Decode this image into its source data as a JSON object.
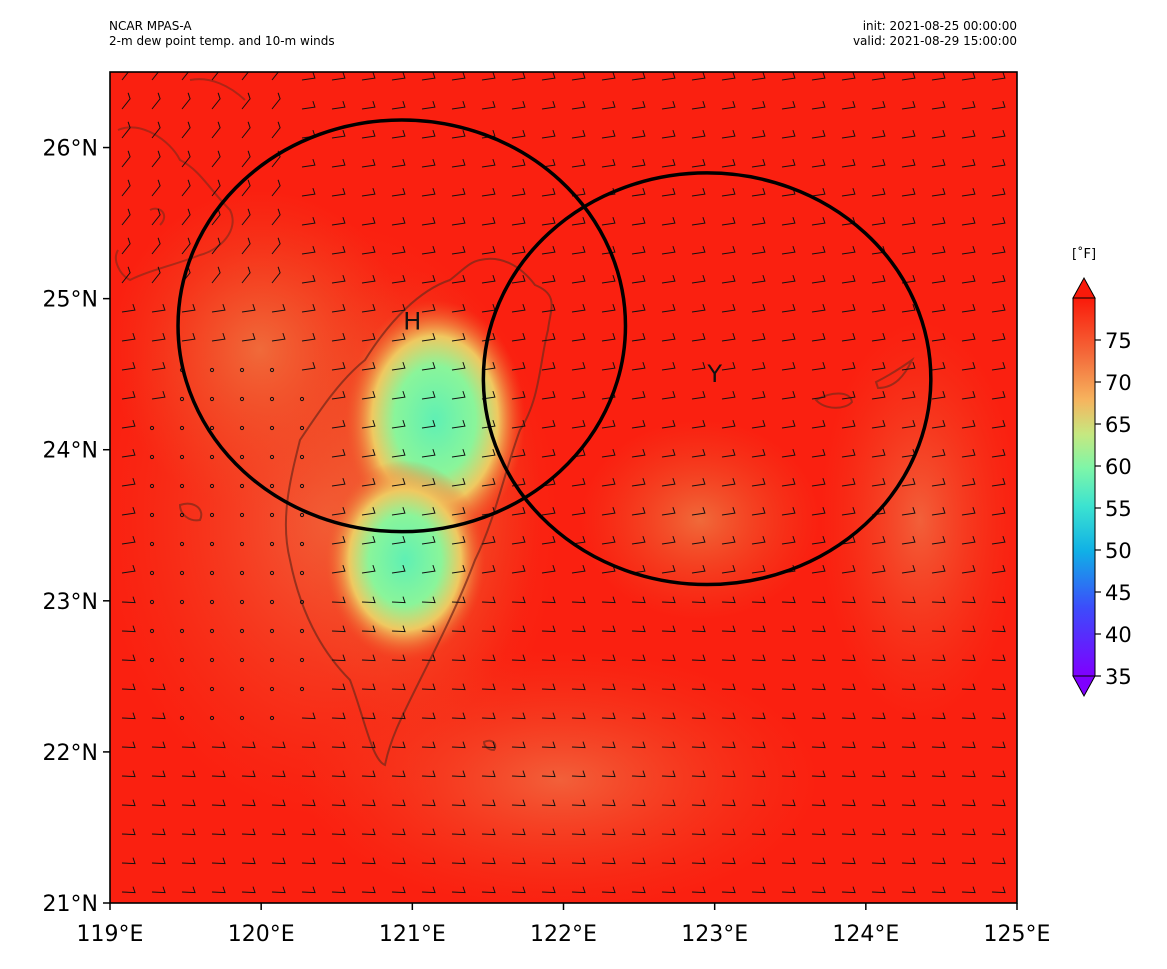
{
  "header": {
    "model": "NCAR MPAS-A",
    "field": "2-m dew point temp. and 10-m winds",
    "init": "init: 2021-08-25 00:00:00",
    "valid": "valid: 2021-08-29 15:00:00"
  },
  "map": {
    "lon_range": [
      119,
      125
    ],
    "lat_range": [
      21,
      26.5
    ],
    "x_ticks": [
      "119°E",
      "120°E",
      "121°E",
      "122°E",
      "123°E",
      "124°E",
      "125°E"
    ],
    "y_ticks": [
      "21°N",
      "22°N",
      "23°N",
      "24°N",
      "25°N",
      "26°N"
    ],
    "colors": {
      "warm": "#fa1e0e",
      "mid": "#f05a2a",
      "dry_center": "#5ff0b4",
      "coast": "#7a2a1a"
    }
  },
  "colorbar": {
    "unit": "[˚F]",
    "range": [
      35,
      80
    ],
    "ticks": [
      "35",
      "40",
      "45",
      "50",
      "55",
      "60",
      "65",
      "70",
      "75"
    ]
  },
  "markers": {
    "h": {
      "label": "H",
      "lon": 121.0,
      "lat": 24.85
    },
    "y": {
      "label": "Y",
      "lon": 123.0,
      "lat": 24.5
    }
  },
  "circles": [
    {
      "center_lon": 120.93,
      "center_lat": 24.82,
      "radius_lon": 1.48
    },
    {
      "center_lon": 122.95,
      "center_lat": 24.47,
      "radius_lon": 1.48
    }
  ]
}
